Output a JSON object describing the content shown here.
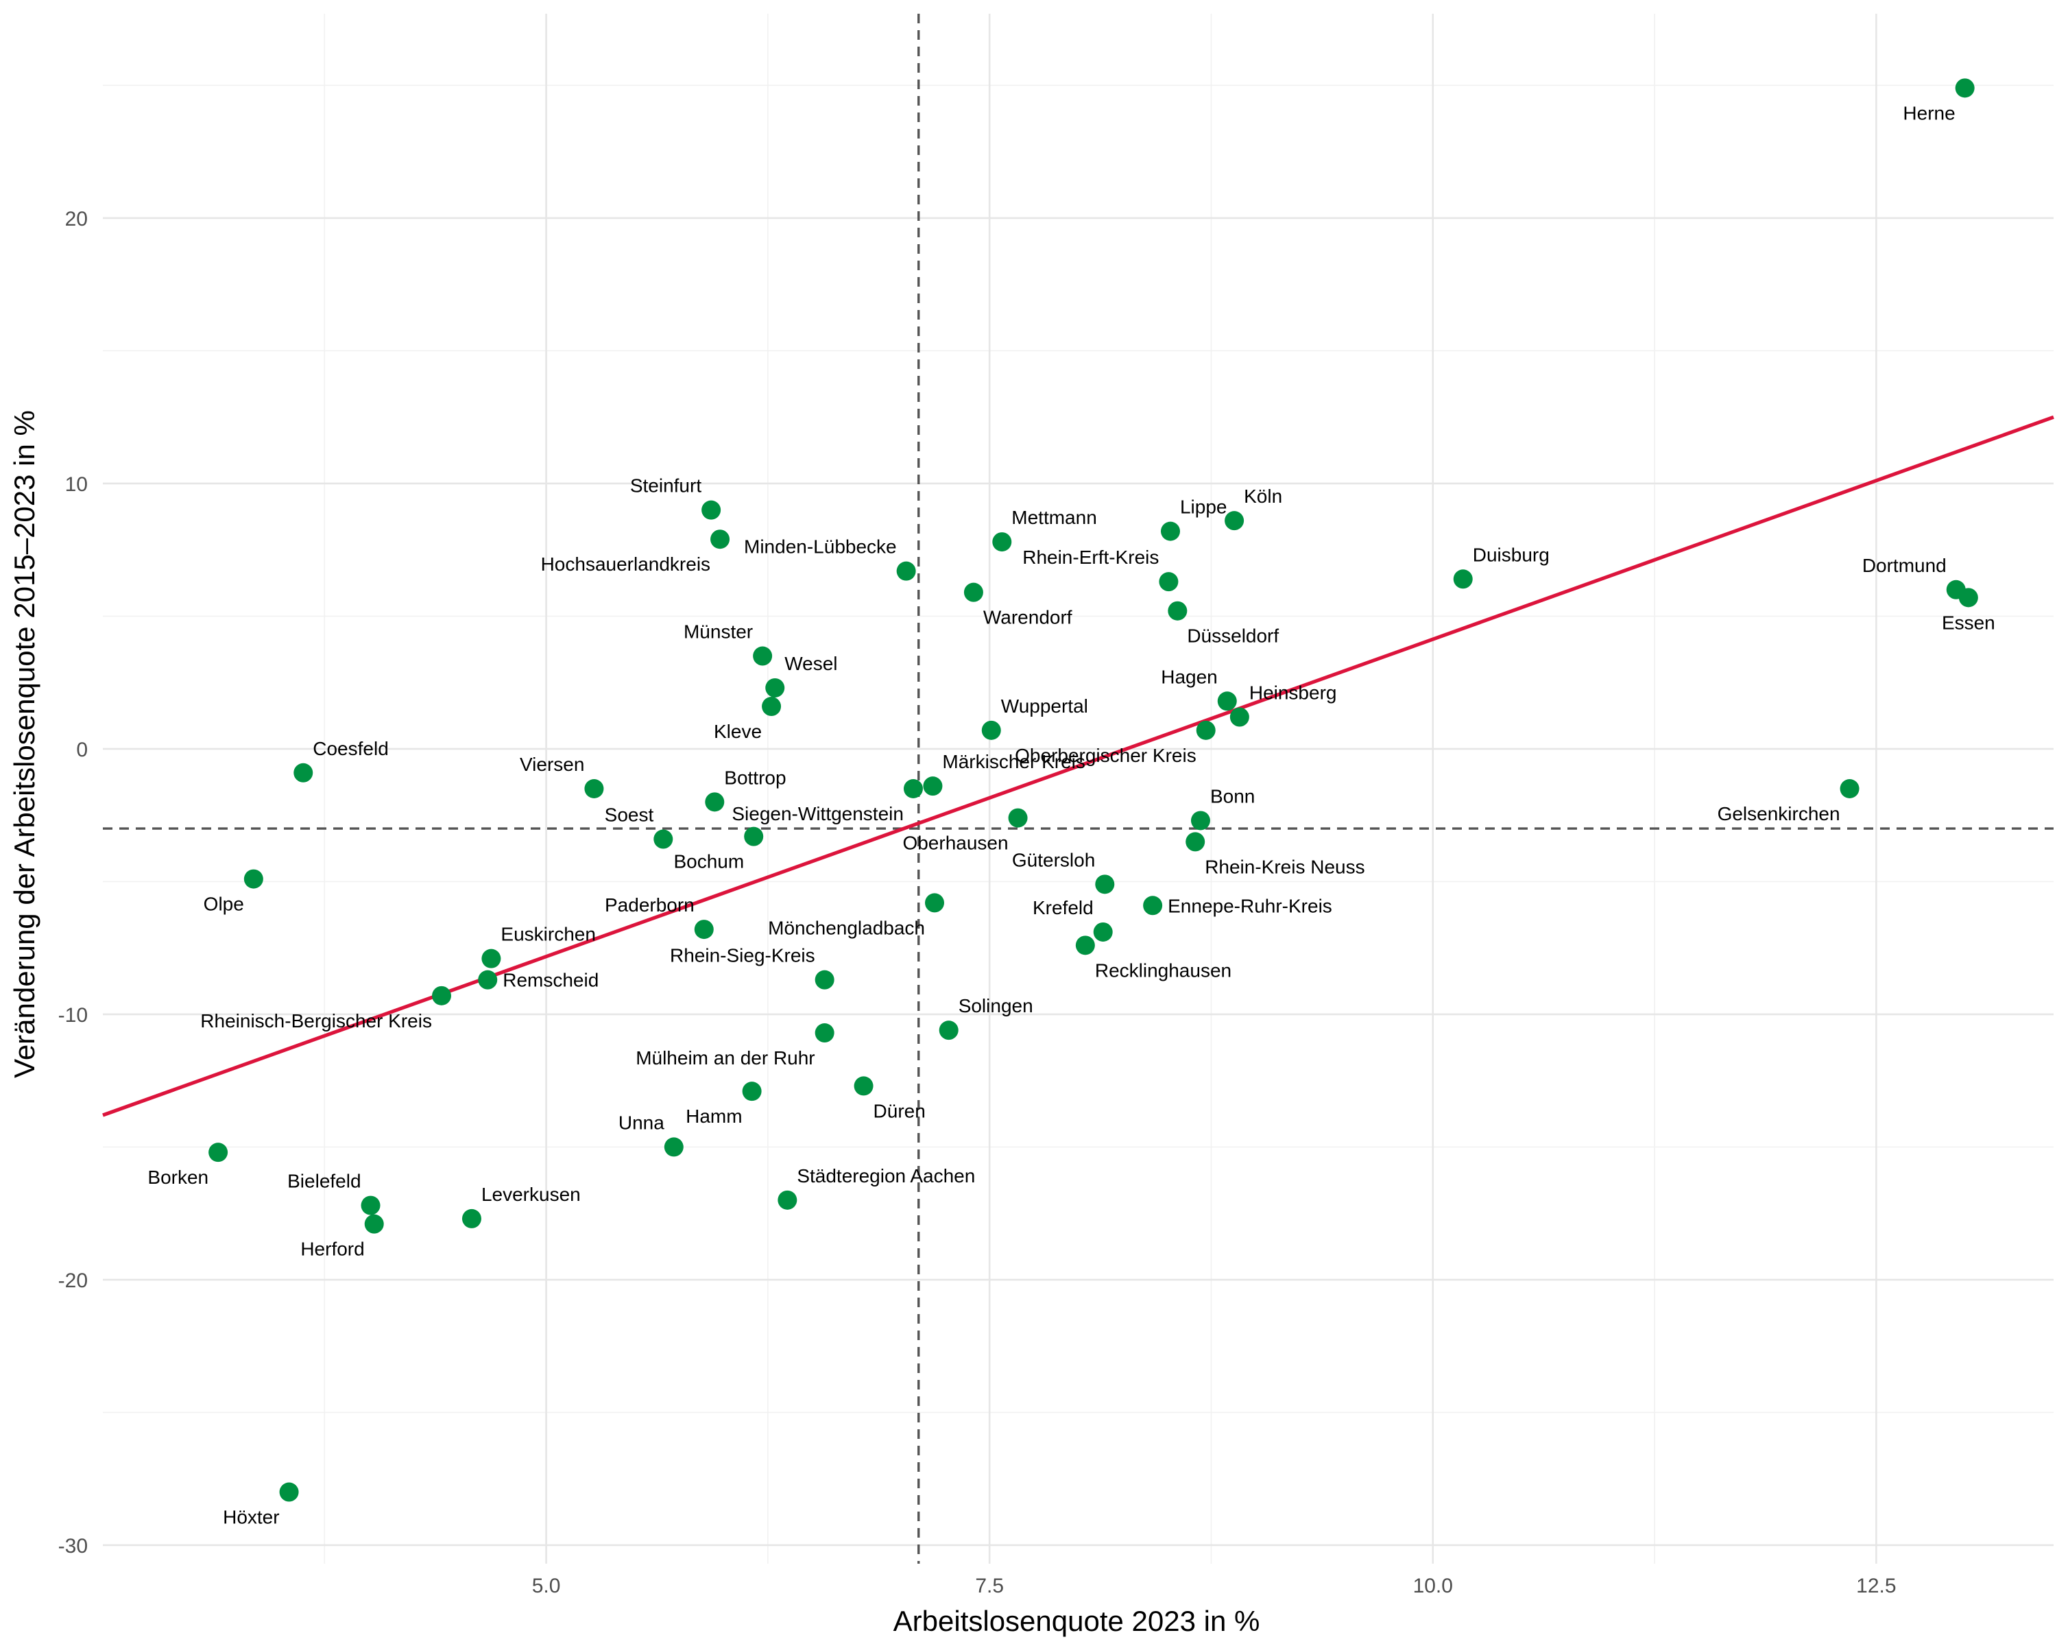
{
  "chart_data": {
    "type": "scatter",
    "title": "",
    "xlabel": "Arbeitslosenquote 2023 in %",
    "ylabel": "Veränderung der Arbeitslosenquote 2015–2023 in %",
    "xlim": [
      2.5,
      13.5
    ],
    "ylim": [
      -30.7,
      27.7
    ],
    "x_ticks": [
      5.0,
      7.5,
      10.0,
      12.5
    ],
    "x_tick_labels": [
      "5.0",
      "7.5",
      "10.0",
      "12.5"
    ],
    "x_minor_ticks": [
      3.75,
      6.25,
      8.75,
      11.25
    ],
    "y_ticks": [
      -30,
      -20,
      -10,
      0,
      10,
      20
    ],
    "y_tick_labels": [
      "-30",
      "-20",
      "-10",
      "0",
      "10",
      "20"
    ],
    "y_minor_ticks": [
      -25,
      -15,
      -5,
      5,
      15,
      25
    ],
    "grid": true,
    "reference_lines": {
      "x": 7.1,
      "y": -3.0,
      "style": "dashed"
    },
    "fit_line": {
      "x": [
        2.5,
        13.5
      ],
      "y": [
        -13.8,
        12.5
      ],
      "color": "#dc143c"
    },
    "point_color": "#009141",
    "points": [
      {
        "name": "Herne",
        "x": 13.0,
        "y": 24.9,
        "label_pos": "below-left"
      },
      {
        "name": "Dortmund",
        "x": 12.95,
        "y": 6.0,
        "label_pos": "above-left"
      },
      {
        "name": "Essen",
        "x": 13.02,
        "y": 5.7,
        "label_pos": "below"
      },
      {
        "name": "Gelsenkirchen",
        "x": 12.35,
        "y": -1.5,
        "label_pos": "below-left"
      },
      {
        "name": "Duisburg",
        "x": 10.17,
        "y": 6.4,
        "label_pos": "above-right"
      },
      {
        "name": "Köln",
        "x": 8.88,
        "y": 8.6,
        "label_pos": "above-right"
      },
      {
        "name": "Lippe",
        "x": 8.52,
        "y": 8.2,
        "label_pos": "above-right"
      },
      {
        "name": "Rhein-Erft-Kreis",
        "x": 8.51,
        "y": 6.3,
        "label_pos": "above-left"
      },
      {
        "name": "Düsseldorf",
        "x": 8.56,
        "y": 5.2,
        "label_pos": "below-right"
      },
      {
        "name": "Hagen",
        "x": 8.84,
        "y": 1.8,
        "label_pos": "above-left"
      },
      {
        "name": "Heinsberg",
        "x": 8.91,
        "y": 1.2,
        "label_pos": "above-right"
      },
      {
        "name": "Oberbergischer Kreis",
        "x": 8.72,
        "y": 0.7,
        "label_pos": "below-left"
      },
      {
        "name": "Bonn",
        "x": 8.69,
        "y": -2.7,
        "label_pos": "above-right"
      },
      {
        "name": "Rhein-Kreis Neuss",
        "x": 8.66,
        "y": -3.5,
        "label_pos": "below-right"
      },
      {
        "name": "Gütersloh",
        "x": 8.15,
        "y": -5.1,
        "label_pos": "above-left"
      },
      {
        "name": "Ennepe-Ruhr-Kreis",
        "x": 8.42,
        "y": -5.9,
        "label_pos": "right"
      },
      {
        "name": "Krefeld",
        "x": 8.14,
        "y": -6.9,
        "label_pos": "above-left"
      },
      {
        "name": "Recklinghausen",
        "x": 8.04,
        "y": -7.4,
        "label_pos": "below-right"
      },
      {
        "name": "Mettmann",
        "x": 7.57,
        "y": 7.8,
        "label_pos": "above-right"
      },
      {
        "name": "Warendorf",
        "x": 7.41,
        "y": 5.9,
        "label_pos": "below-right"
      },
      {
        "name": "Minden-Lübbecke",
        "x": 7.03,
        "y": 6.7,
        "label_pos": "above-left"
      },
      {
        "name": "Wuppertal",
        "x": 7.51,
        "y": 0.7,
        "label_pos": "above-right"
      },
      {
        "name": "Märkischer Kreis",
        "x": 7.18,
        "y": -1.4,
        "label_pos": "above-right"
      },
      {
        "name": "Siegen-Wittgenstein",
        "x": 7.07,
        "y": -1.5,
        "label_pos": "below-left"
      },
      {
        "name": "Oberhausen",
        "x": 7.66,
        "y": -2.6,
        "label_pos": "below-left"
      },
      {
        "name": "Mönchengladbach",
        "x": 7.19,
        "y": -5.8,
        "label_pos": "below-left"
      },
      {
        "name": "Solingen",
        "x": 7.27,
        "y": -10.6,
        "label_pos": "above-right"
      },
      {
        "name": "Düren",
        "x": 6.79,
        "y": -12.7,
        "label_pos": "below-right"
      },
      {
        "name": "Rhein-Sieg-Kreis",
        "x": 6.57,
        "y": -8.7,
        "label_pos": "above-left"
      },
      {
        "name": "Mülheim an der Ruhr",
        "x": 6.57,
        "y": -10.7,
        "label_pos": "below-left"
      },
      {
        "name": "Städteregion Aachen",
        "x": 6.36,
        "y": -17.0,
        "label_pos": "above-right"
      },
      {
        "name": "Hamm",
        "x": 6.16,
        "y": -12.9,
        "label_pos": "below-left"
      },
      {
        "name": "Unna",
        "x": 5.72,
        "y": -15.0,
        "label_pos": "above-left"
      },
      {
        "name": "Steinfurt",
        "x": 5.93,
        "y": 9.0,
        "label_pos": "above-left"
      },
      {
        "name": "Hochsauerlandkreis",
        "x": 5.98,
        "y": 7.9,
        "label_pos": "below-left"
      },
      {
        "name": "Münster",
        "x": 6.22,
        "y": 3.5,
        "label_pos": "above-left"
      },
      {
        "name": "Wesel",
        "x": 6.29,
        "y": 2.3,
        "label_pos": "above-right"
      },
      {
        "name": "Kleve",
        "x": 6.27,
        "y": 1.6,
        "label_pos": "below-left"
      },
      {
        "name": "Bottrop",
        "x": 5.95,
        "y": -2.0,
        "label_pos": "above-right"
      },
      {
        "name": "Bochum",
        "x": 6.17,
        "y": -3.3,
        "label_pos": "below-left"
      },
      {
        "name": "Soest",
        "x": 5.66,
        "y": -3.4,
        "label_pos": "above-left"
      },
      {
        "name": "Viersen",
        "x": 5.27,
        "y": -1.5,
        "label_pos": "above-left"
      },
      {
        "name": "Paderborn",
        "x": 5.89,
        "y": -6.8,
        "label_pos": "above-left"
      },
      {
        "name": "Coesfeld",
        "x": 3.63,
        "y": -0.9,
        "label_pos": "above-right"
      },
      {
        "name": "Olpe",
        "x": 3.35,
        "y": -4.9,
        "label_pos": "below-left"
      },
      {
        "name": "Euskirchen",
        "x": 4.69,
        "y": -7.9,
        "label_pos": "above-right"
      },
      {
        "name": "Remscheid",
        "x": 4.67,
        "y": -8.7,
        "label_pos": "right"
      },
      {
        "name": "Rheinisch-Bergischer Kreis",
        "x": 4.41,
        "y": -9.3,
        "label_pos": "below-left"
      },
      {
        "name": "Borken",
        "x": 3.15,
        "y": -15.2,
        "label_pos": "below-left"
      },
      {
        "name": "Bielefeld",
        "x": 4.01,
        "y": -17.2,
        "label_pos": "above-left"
      },
      {
        "name": "Herford",
        "x": 4.03,
        "y": -17.9,
        "label_pos": "below-left"
      },
      {
        "name": "Leverkusen",
        "x": 4.58,
        "y": -17.7,
        "label_pos": "above-right"
      },
      {
        "name": "Höxter",
        "x": 3.55,
        "y": -28.0,
        "label_pos": "below-left"
      }
    ]
  }
}
